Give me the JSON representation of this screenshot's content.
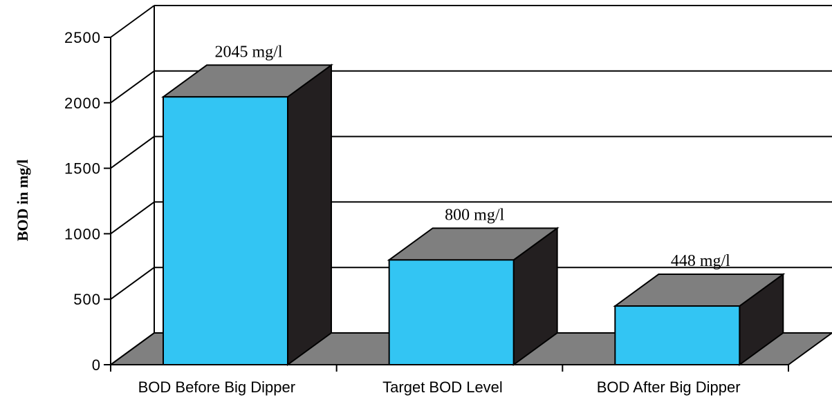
{
  "chart_data": {
    "type": "bar",
    "categories": [
      "BOD Before Big Dipper",
      "Target BOD Level",
      "BOD After Big Dipper"
    ],
    "values": [
      2045,
      800,
      448
    ],
    "data_labels": [
      "2045 mg/l",
      "800 mg/l",
      "448 mg/l"
    ],
    "title": "",
    "xlabel": "",
    "ylabel": "BOD in mg/l",
    "ylim": [
      0,
      2500
    ],
    "yticks": [
      0,
      500,
      1000,
      1500,
      2000,
      2500
    ],
    "grid": true,
    "legend": "none",
    "style": "3d",
    "colors": {
      "bar_front": "#33c5f3",
      "bar_top": "#7f7f7f",
      "bar_side": "#231f20",
      "floor": "#808080",
      "back_wall": "#ffffff",
      "line": "#000000"
    }
  }
}
